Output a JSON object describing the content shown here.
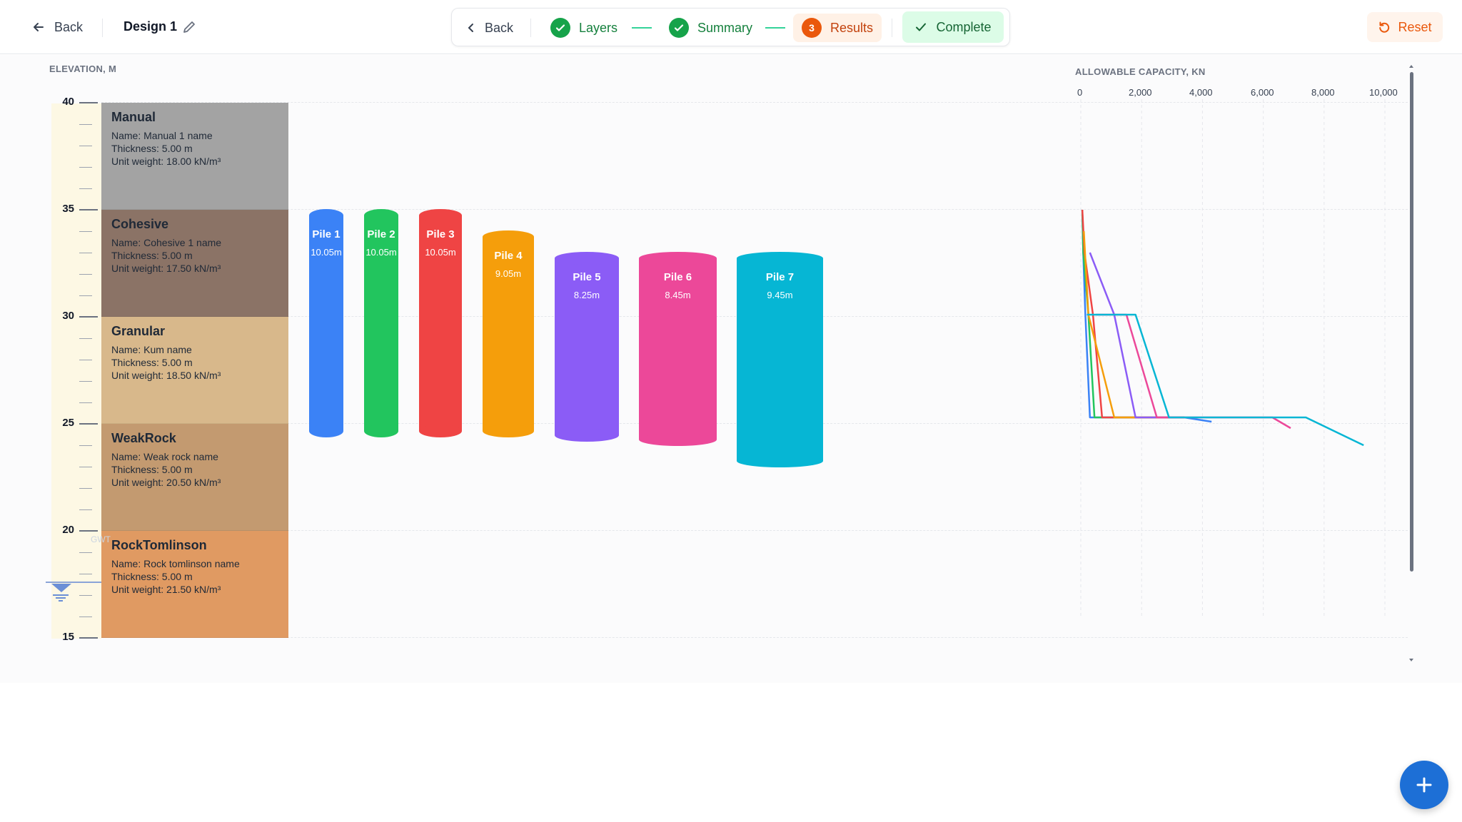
{
  "header": {
    "back_label": "Back",
    "design_title": "Design 1",
    "reset_label": "Reset"
  },
  "stepper": {
    "back_label": "Back",
    "steps": [
      {
        "label": "Layers",
        "state": "done"
      },
      {
        "label": "Summary",
        "state": "done"
      },
      {
        "label": "Results",
        "state": "active",
        "number": "3"
      }
    ],
    "complete_label": "Complete"
  },
  "elevation_panel": {
    "title": "ELEVATION, M",
    "ticks": [
      "40",
      "35",
      "30",
      "25",
      "20",
      "15"
    ]
  },
  "layers": [
    {
      "type": "Manual",
      "name": "Name: Manual 1 name",
      "thickness": "Thickness: 5.00 m",
      "unit_weight": "Unit weight: 18.00 kN/m³",
      "color": "#a3a3a3"
    },
    {
      "type": "Cohesive",
      "name": "Name: Cohesive 1 name",
      "thickness": "Thickness: 5.00 m",
      "unit_weight": "Unit weight: 17.50 kN/m³",
      "color": "#8b7366"
    },
    {
      "type": "Granular",
      "name": "Name: Kum name",
      "thickness": "Thickness: 5.00 m",
      "unit_weight": "Unit weight: 18.50 kN/m³",
      "color": "#d8b88b"
    },
    {
      "type": "WeakRock",
      "name": "Name: Weak rock name",
      "thickness": "Thickness: 5.00 m",
      "unit_weight": "Unit weight: 20.50 kN/m³",
      "color": "#c39a70"
    },
    {
      "type": "RockTomlinson",
      "name": "Name: Rock tomlinson name",
      "thickness": "Thickness: 5.00 m",
      "unit_weight": "Unit weight: 21.50 kN/m³",
      "color": "#e09a62"
    }
  ],
  "groundwater": {
    "label": "GWT",
    "elevation_m": 20
  },
  "piles": [
    {
      "name": "Pile 1",
      "length": "10.05m",
      "color": "#3b82f6"
    },
    {
      "name": "Pile 2",
      "length": "10.05m",
      "color": "#22c55e"
    },
    {
      "name": "Pile 3",
      "length": "10.05m",
      "color": "#ef4444"
    },
    {
      "name": "Pile 4",
      "length": "9.05m",
      "color": "#f59e0b"
    },
    {
      "name": "Pile 5",
      "length": "8.25m",
      "color": "#8b5cf6"
    },
    {
      "name": "Pile 6",
      "length": "8.45m",
      "color": "#ec4899"
    },
    {
      "name": "Pile 7",
      "length": "9.45m",
      "color": "#06b6d4"
    }
  ],
  "capacity_panel": {
    "title": "ALLOWABLE CAPACITY, KN",
    "axis_ticks": [
      "0",
      "2,000",
      "4,000",
      "6,000",
      "8,000",
      "10,000"
    ]
  },
  "chart_data": {
    "type": "line",
    "title": "ALLOWABLE CAPACITY, KN",
    "xlabel": "ALLOWABLE CAPACITY, KN",
    "ylabel": "ELEVATION, M",
    "xlim": [
      0,
      10000
    ],
    "ylim": [
      15,
      40
    ],
    "x_ticks": [
      "0",
      "2,000",
      "4,000",
      "6,000",
      "8,000",
      "10,000"
    ],
    "grid": true,
    "series": [
      {
        "color": "#3b82f6",
        "points": [
          [
            50,
            35
          ],
          [
            80,
            33
          ],
          [
            150,
            30.1
          ],
          [
            300,
            25.3
          ],
          [
            3400,
            25.3
          ],
          [
            4300,
            25.1
          ]
        ]
      },
      {
        "color": "#22c55e",
        "points": [
          [
            50,
            35
          ],
          [
            80,
            33
          ],
          [
            250,
            30.1
          ],
          [
            450,
            25.3
          ],
          [
            3400,
            25.3
          ]
        ]
      },
      {
        "color": "#ef4444",
        "points": [
          [
            50,
            35
          ],
          [
            120,
            33
          ],
          [
            400,
            30.1
          ],
          [
            700,
            25.3
          ],
          [
            3400,
            25.3
          ]
        ]
      },
      {
        "color": "#f59e0b",
        "points": [
          [
            100,
            34
          ],
          [
            250,
            30.1
          ],
          [
            1100,
            25.3
          ],
          [
            3400,
            25.3
          ]
        ]
      },
      {
        "color": "#8b5cf6",
        "points": [
          [
            300,
            33
          ],
          [
            1100,
            30.1
          ],
          [
            1800,
            25.3
          ],
          [
            3400,
            25.3
          ]
        ]
      },
      {
        "color": "#ec4899",
        "points": [
          [
            500,
            30.1
          ],
          [
            1500,
            30.1
          ],
          [
            2500,
            25.3
          ],
          [
            6300,
            25.3
          ],
          [
            6900,
            24.8
          ]
        ]
      },
      {
        "color": "#06b6d4",
        "points": [
          [
            200,
            30.1
          ],
          [
            1800,
            30.1
          ],
          [
            2900,
            25.3
          ],
          [
            7400,
            25.3
          ],
          [
            9300,
            24
          ]
        ]
      }
    ]
  },
  "fab_icon": "plus-icon"
}
